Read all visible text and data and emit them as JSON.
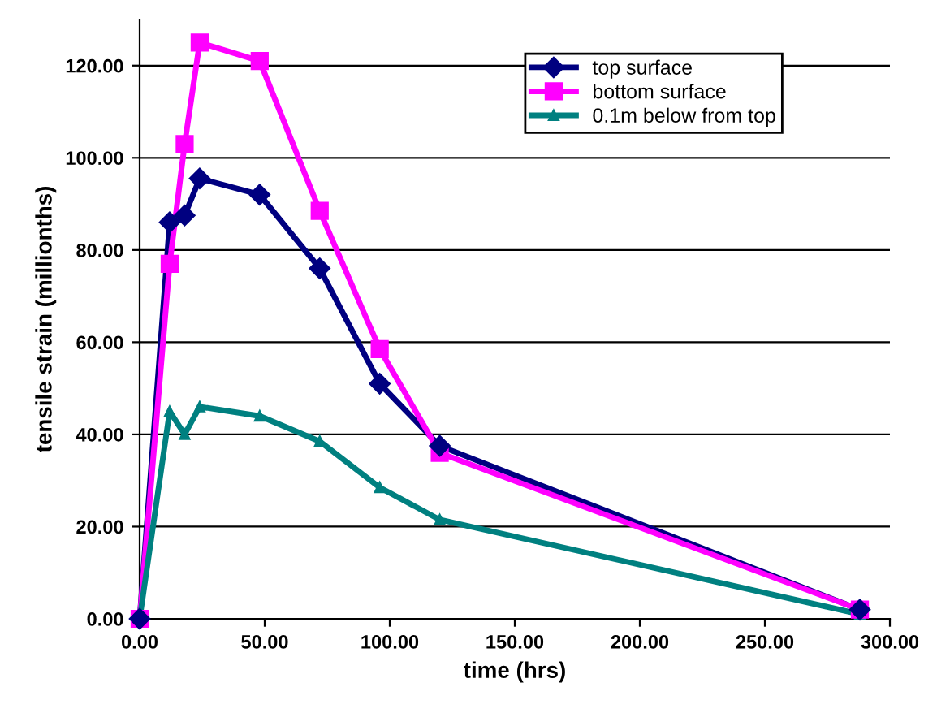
{
  "chart_data": {
    "type": "line",
    "xlabel": "time (hrs)",
    "ylabel": "tensile strain (millionths)",
    "x": [
      0,
      12,
      18,
      24,
      48,
      72,
      96,
      120,
      288
    ],
    "series": [
      {
        "name": "top surface",
        "color": "#000080",
        "marker": "diamond",
        "values": [
          0,
          86,
          87.5,
          95.5,
          92,
          76,
          51,
          37.5,
          2
        ]
      },
      {
        "name": "bottom surface",
        "color": "#ff00ff",
        "marker": "square",
        "values": [
          0,
          77,
          103,
          125,
          121,
          88.5,
          58.5,
          36,
          2
        ]
      },
      {
        "name": "0.1m below from top",
        "color": "#008080",
        "marker": "triangle",
        "values": [
          0,
          45,
          40,
          46,
          44,
          38.5,
          28.5,
          21.5,
          1
        ]
      }
    ],
    "xlim": [
      0,
      300
    ],
    "xticks": [
      {
        "value": 0,
        "label": "0.00"
      },
      {
        "value": 50,
        "label": "50.00"
      },
      {
        "value": 100,
        "label": "100.00"
      },
      {
        "value": 150,
        "label": "150.00"
      },
      {
        "value": 200,
        "label": "200.00"
      },
      {
        "value": 250,
        "label": "250.00"
      },
      {
        "value": 300,
        "label": "300.00"
      }
    ],
    "ylim": [
      0,
      130
    ],
    "yticks": [
      {
        "value": 0,
        "label": "0.00"
      },
      {
        "value": 20,
        "label": "20.00"
      },
      {
        "value": 40,
        "label": "40.00"
      },
      {
        "value": 60,
        "label": "60.00"
      },
      {
        "value": 80,
        "label": "80.00"
      },
      {
        "value": 100,
        "label": "100.00"
      },
      {
        "value": 120,
        "label": "120.00"
      }
    ],
    "grid": "y",
    "legend": "top right",
    "line_style": "solid"
  }
}
